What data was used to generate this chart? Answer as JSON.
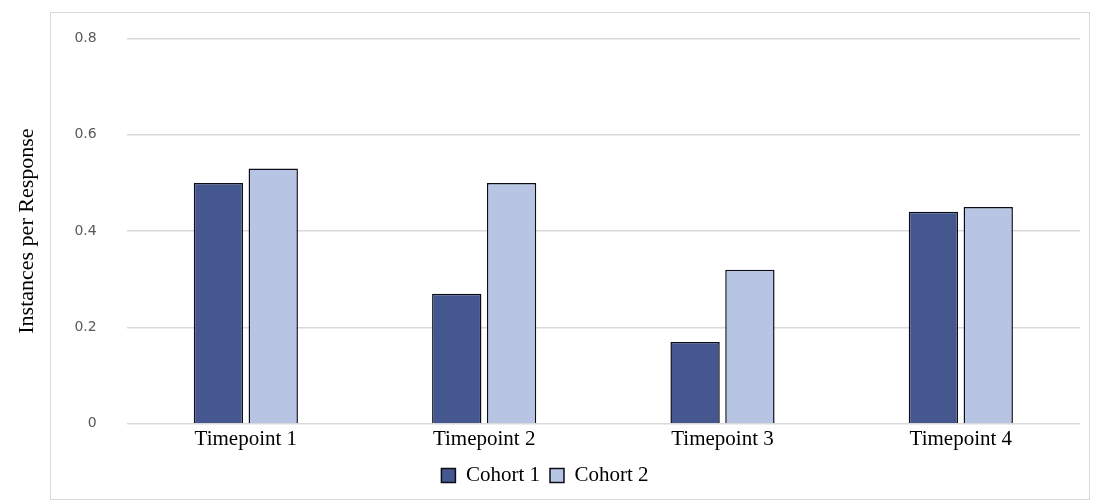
{
  "chart_data": {
    "type": "bar",
    "ylabel": "Instances per Response",
    "categories": [
      "Timepoint 1",
      "Timepoint 2",
      "Timepoint 3",
      "Timepoint 4"
    ],
    "series": [
      {
        "name": "Cohort 1",
        "color": "#44578f",
        "values": [
          0.5,
          0.27,
          0.17,
          0.44
        ]
      },
      {
        "name": "Cohort 2",
        "color": "#b7c4e3",
        "values": [
          0.53,
          0.5,
          0.32,
          0.45
        ]
      }
    ],
    "ylim": [
      0,
      0.8
    ],
    "yticks": [
      0,
      0.2,
      0.4,
      0.6,
      0.8
    ],
    "grid": "y",
    "legend": "bottom"
  }
}
